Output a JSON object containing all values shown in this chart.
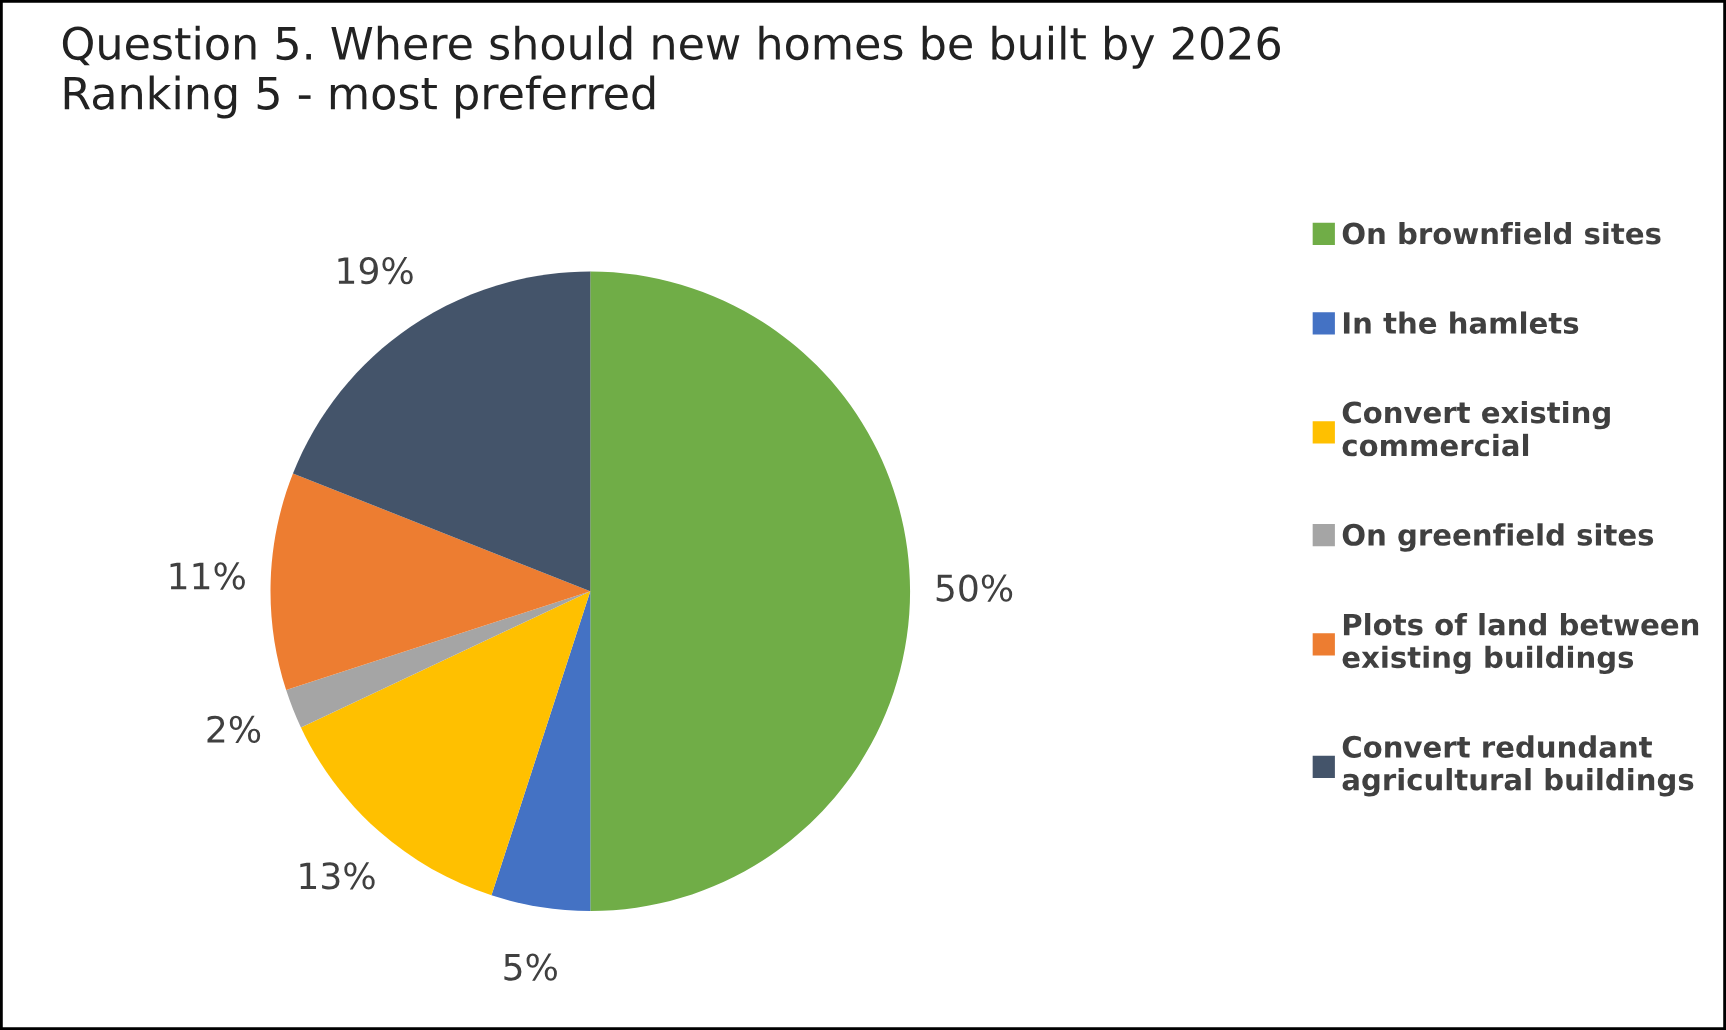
{
  "chart_data": {
    "type": "pie",
    "title": "Question 5. Where should new homes be built by 2026\nRanking 5 - most preferred",
    "categories": [
      "On brownfield sites",
      "In the hamlets",
      "Convert existing\ncommercial",
      "On greenfield sites",
      "Plots of land between\nexisting buildings",
      "Convert redundant\nagricultural buildings"
    ],
    "values": [
      50,
      5,
      13,
      2,
      11,
      19
    ],
    "colors": [
      "#70ad47",
      "#4472c4",
      "#ffc000",
      "#a5a5a5",
      "#ed7d31",
      "#44546a"
    ],
    "value_labels": [
      "50%",
      "5%",
      "13%",
      "2%",
      "11%",
      "19%"
    ],
    "legend": "right"
  }
}
